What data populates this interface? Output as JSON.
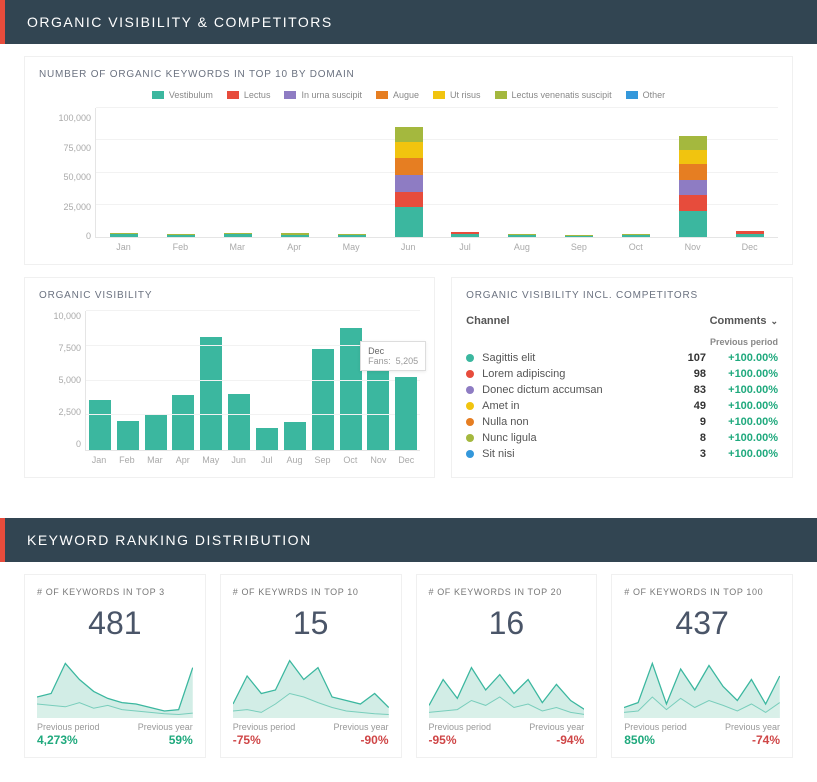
{
  "colors": {
    "header_bg": "#324552",
    "header_accent": "#e74c3c",
    "teal": "#3bb79f",
    "teal_fill": "#bfe5dc",
    "teal_fill_light": "#d9efe9",
    "red": "#cf4647",
    "pos_green": "#1fa97d"
  },
  "section1": {
    "title": "ORGANIC VISIBILITY & COMPETITORS"
  },
  "chart1": {
    "title": "NUMBER OF ORGANIC KEYWORDS IN TOP 10 BY DOMAIN",
    "type": "stacked-bar",
    "ylim": [
      0,
      100000
    ],
    "ytick_step": 25000,
    "yticks": [
      "100,000",
      "75,000",
      "50,000",
      "25,000",
      "0"
    ],
    "categories": [
      "Jan",
      "Feb",
      "Mar",
      "Apr",
      "May",
      "Jun",
      "Jul",
      "Aug",
      "Sep",
      "Oct",
      "Nov",
      "Dec"
    ],
    "legend": [
      {
        "label": "Vestibulum",
        "color": "#3bb79f"
      },
      {
        "label": "Lectus",
        "color": "#e74c3c"
      },
      {
        "label": "In urna suscipit",
        "color": "#8e7cc3"
      },
      {
        "label": "Augue",
        "color": "#e67e22"
      },
      {
        "label": "Ut risus",
        "color": "#f1c40f"
      },
      {
        "label": "Lectus venenatis suscipit",
        "color": "#a4b83e"
      },
      {
        "label": "Other",
        "color": "#3498db"
      }
    ],
    "label_fontsize": 9,
    "grid_color": "#f2f2f2",
    "stacks": [
      [
        {
          "c": "#3bb79f",
          "v": 2000
        },
        {
          "c": "#a4b83e",
          "v": 1000
        }
      ],
      [
        {
          "c": "#3bb79f",
          "v": 1500
        },
        {
          "c": "#a4b83e",
          "v": 1000
        }
      ],
      [
        {
          "c": "#3bb79f",
          "v": 2000
        },
        {
          "c": "#a4b83e",
          "v": 1200
        }
      ],
      [
        {
          "c": "#3bb79f",
          "v": 1800
        },
        {
          "c": "#a4b83e",
          "v": 1200
        }
      ],
      [
        {
          "c": "#3bb79f",
          "v": 1200
        },
        {
          "c": "#a4b83e",
          "v": 800
        }
      ],
      [
        {
          "c": "#3bb79f",
          "v": 23000
        },
        {
          "c": "#e74c3c",
          "v": 12000
        },
        {
          "c": "#8e7cc3",
          "v": 13000
        },
        {
          "c": "#e67e22",
          "v": 13000
        },
        {
          "c": "#f1c40f",
          "v": 12000
        },
        {
          "c": "#a4b83e",
          "v": 12000
        }
      ],
      [
        {
          "c": "#3bb79f",
          "v": 2200
        },
        {
          "c": "#e74c3c",
          "v": 1800
        }
      ],
      [
        {
          "c": "#3bb79f",
          "v": 1400
        },
        {
          "c": "#a4b83e",
          "v": 800
        }
      ],
      [
        {
          "c": "#3bb79f",
          "v": 1000
        },
        {
          "c": "#a4b83e",
          "v": 600
        }
      ],
      [
        {
          "c": "#3bb79f",
          "v": 1400
        },
        {
          "c": "#a4b83e",
          "v": 800
        }
      ],
      [
        {
          "c": "#3bb79f",
          "v": 20000
        },
        {
          "c": "#e74c3c",
          "v": 12000
        },
        {
          "c": "#8e7cc3",
          "v": 12000
        },
        {
          "c": "#e67e22",
          "v": 12000
        },
        {
          "c": "#f1c40f",
          "v": 11000
        },
        {
          "c": "#a4b83e",
          "v": 11000
        }
      ],
      [
        {
          "c": "#3bb79f",
          "v": 2600
        },
        {
          "c": "#e74c3c",
          "v": 1900
        }
      ]
    ]
  },
  "chart2": {
    "title": "ORGANIC VISIBILITY",
    "type": "bar",
    "color": "#3bb79f",
    "ylim": [
      0,
      10000
    ],
    "ytick_step": 2500,
    "yticks": [
      "10,000",
      "7,500",
      "5,000",
      "2,500",
      "0"
    ],
    "categories": [
      "Jan",
      "Feb",
      "Mar",
      "Apr",
      "May",
      "Jun",
      "Jul",
      "Aug",
      "Sep",
      "Oct",
      "Nov",
      "Dec"
    ],
    "values": [
      3600,
      2100,
      2550,
      3900,
      8100,
      4000,
      1600,
      2000,
      7200,
      8700,
      6200,
      5205
    ],
    "tooltip": {
      "month": "Dec",
      "label": "Fans:",
      "value": "5,205",
      "col_index": 11
    }
  },
  "comp_table": {
    "title": "ORGANIC VISIBILITY INCL. COMPETITORS",
    "col_channel": "Channel",
    "col_comments": "Comments",
    "sub_prev": "Previous period",
    "rows": [
      {
        "color": "#3bb79f",
        "name": "Sagittis elit",
        "val": "107",
        "prev": "+100.00%"
      },
      {
        "color": "#e74c3c",
        "name": "Lorem adipiscing",
        "val": "98",
        "prev": "+100.00%"
      },
      {
        "color": "#8e7cc3",
        "name": "Donec dictum accumsan",
        "val": "83",
        "prev": "+100.00%"
      },
      {
        "color": "#f1c40f",
        "name": "Amet in",
        "val": "49",
        "prev": "+100.00%"
      },
      {
        "color": "#e67e22",
        "name": "Nulla non",
        "val": "9",
        "prev": "+100.00%"
      },
      {
        "color": "#a4b83e",
        "name": "Nunc ligula",
        "val": "8",
        "prev": "+100.00%"
      },
      {
        "color": "#3498db",
        "name": "Sit nisi",
        "val": "3",
        "prev": "+100.00%"
      }
    ]
  },
  "section2": {
    "title": "KEYWORD RANKING DISTRIBUTION"
  },
  "kpis": [
    {
      "title": "# OF KEYWORDS IN TOP 3",
      "value": "481",
      "prev_period_label": "Previous period",
      "prev_period_val": "4,273%",
      "prev_period_color": "#1fa97d",
      "prev_year_label": "Previous year",
      "prev_year_val": "59%",
      "prev_year_color": "#1fa97d",
      "spark_a": [
        30,
        35,
        78,
        55,
        38,
        28,
        22,
        20,
        15,
        10,
        12,
        72
      ],
      "spark_b": [
        20,
        18,
        16,
        22,
        14,
        18,
        12,
        10,
        8,
        6,
        5,
        7
      ]
    },
    {
      "title": "# OF KEYWRDS IN TOP 10",
      "value": "15",
      "prev_period_label": "Previous period",
      "prev_period_val": "-75%",
      "prev_period_color": "#cf4647",
      "prev_year_label": "Previous year",
      "prev_year_val": "-90%",
      "prev_year_color": "#cf4647",
      "spark_a": [
        20,
        60,
        35,
        40,
        82,
        55,
        72,
        30,
        25,
        20,
        35,
        15
      ],
      "spark_b": [
        10,
        12,
        8,
        20,
        35,
        30,
        22,
        15,
        10,
        8,
        6,
        5
      ]
    },
    {
      "title": "# OF KEYWORDS IN TOP 20",
      "value": "16",
      "prev_period_label": "Previous period",
      "prev_period_val": "-95%",
      "prev_period_color": "#cf4647",
      "prev_year_label": "Previous year",
      "prev_year_val": "-94%",
      "prev_year_color": "#cf4647",
      "spark_a": [
        18,
        55,
        28,
        72,
        40,
        62,
        35,
        55,
        22,
        48,
        25,
        12
      ],
      "spark_b": [
        8,
        10,
        12,
        25,
        18,
        30,
        15,
        20,
        10,
        15,
        8,
        5
      ]
    },
    {
      "title": "# OF KEYWORDS IN TOP 100",
      "value": "437",
      "prev_period_label": "Previous period",
      "prev_period_val": "850%",
      "prev_period_color": "#1fa97d",
      "prev_year_label": "Previous year",
      "prev_year_val": "-74%",
      "prev_year_color": "#cf4647",
      "spark_a": [
        15,
        22,
        78,
        20,
        70,
        40,
        75,
        45,
        25,
        55,
        20,
        60
      ],
      "spark_b": [
        8,
        10,
        30,
        12,
        28,
        15,
        25,
        18,
        10,
        20,
        8,
        22
      ]
    }
  ]
}
